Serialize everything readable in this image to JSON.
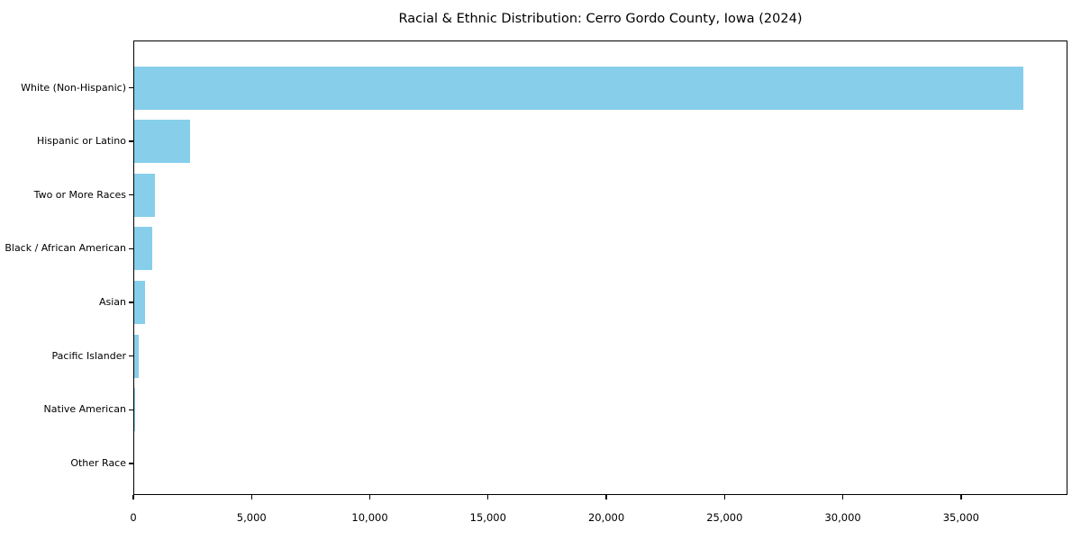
{
  "chart_data": {
    "type": "bar",
    "orientation": "horizontal",
    "title": "Racial & Ethnic Distribution: Cerro Gordo County, Iowa (2024)",
    "categories": [
      "White (Non-Hispanic)",
      "Hispanic or Latino",
      "Two or More Races",
      "Black / African American",
      "Asian",
      "Pacific Islander",
      "Native American",
      "Other Race"
    ],
    "values": [
      37650,
      2390,
      930,
      800,
      510,
      220,
      60,
      25
    ],
    "x_tick_labels": [
      "0",
      "5,000",
      "10,000",
      "15,000",
      "20,000",
      "25,000",
      "30,000",
      "35,000"
    ],
    "x_tick_values": [
      0,
      5000,
      10000,
      15000,
      20000,
      25000,
      30000,
      35000
    ],
    "xlim": [
      0,
      39500
    ],
    "xlabel": "",
    "ylabel": "",
    "bar_color": "#87CEEB",
    "background_color": "#FFFFFF",
    "text_color": "#000000",
    "grid": false,
    "legend": null
  }
}
